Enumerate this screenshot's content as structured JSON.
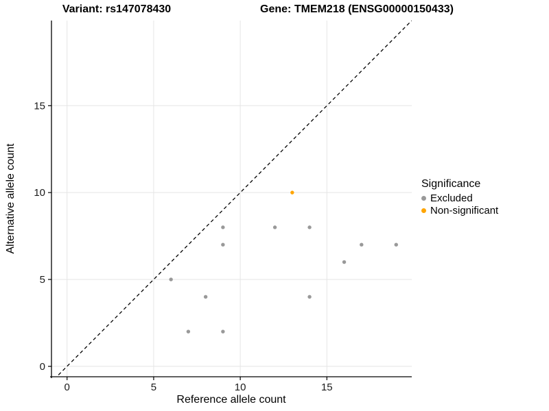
{
  "titles": {
    "variant": "Variant: rs147078430",
    "gene": "Gene: TMEM218 (ENSG00000150433)"
  },
  "chart_data": {
    "type": "scatter",
    "title": "Variant: rs147078430 — Gene: TMEM218 (ENSG00000150433)",
    "xlabel": "Reference allele count",
    "ylabel": "Alternative allele count",
    "xlim": [
      -0.9,
      19.9
    ],
    "ylim": [
      -0.6,
      19.9
    ],
    "xticks": [
      0,
      5,
      10,
      15
    ],
    "yticks": [
      0,
      5,
      10,
      15
    ],
    "grid": true,
    "grid_color": "#e5e5e5",
    "identity_line": {
      "style": "dashed",
      "color": "#000000",
      "equation": "y = x"
    },
    "series": [
      {
        "name": "Excluded",
        "color": "#999999",
        "points": [
          [
            6,
            5
          ],
          [
            7,
            2
          ],
          [
            8,
            4
          ],
          [
            9,
            2
          ],
          [
            9,
            7
          ],
          [
            9,
            8
          ],
          [
            12,
            8
          ],
          [
            14,
            4
          ],
          [
            14,
            8
          ],
          [
            16,
            6
          ],
          [
            17,
            7
          ],
          [
            19,
            7
          ]
        ]
      },
      {
        "name": "Non-significant",
        "color": "#FFA500",
        "points": [
          [
            13,
            10
          ]
        ]
      }
    ],
    "legend": {
      "title": "Significance",
      "position": "right"
    }
  }
}
